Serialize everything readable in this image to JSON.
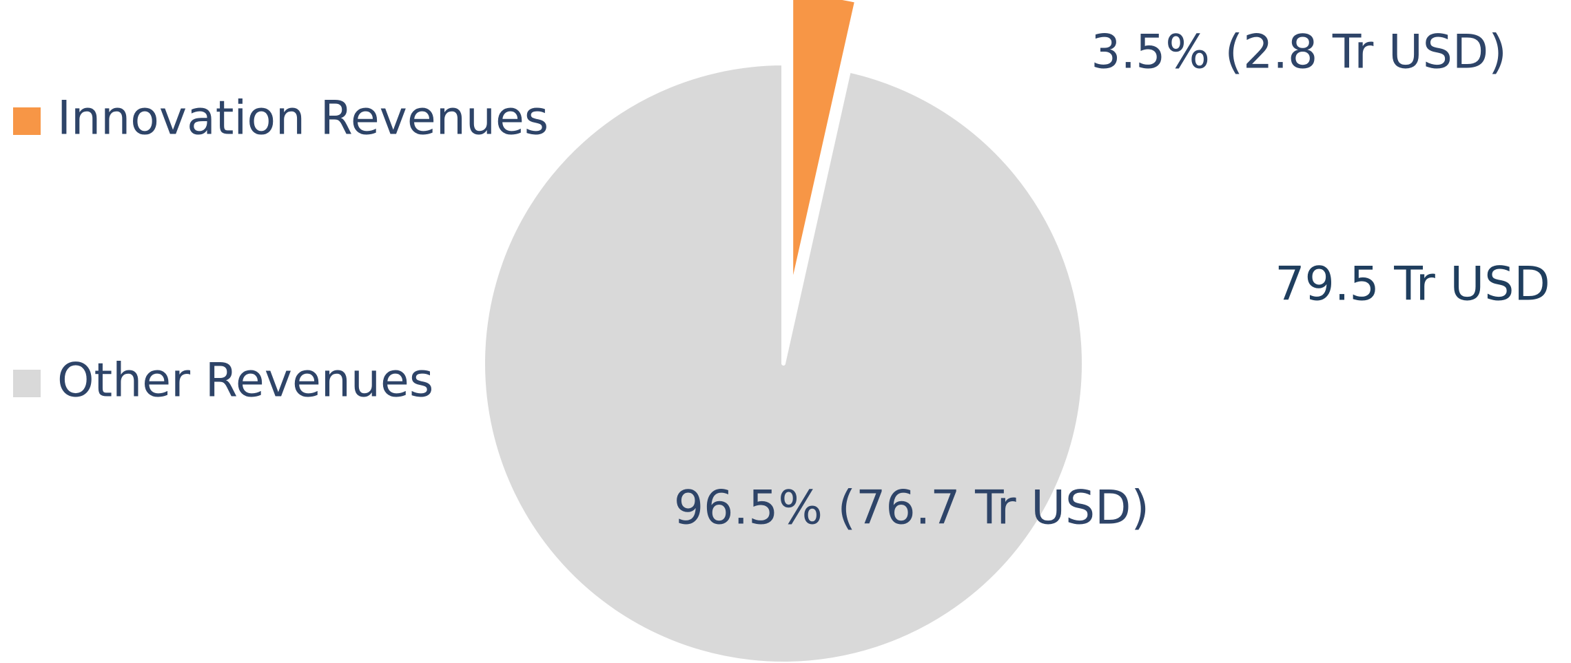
{
  "chart_data": {
    "type": "pie",
    "categories": [
      "Innovation Revenues",
      "Other Revenues"
    ],
    "values": [
      3.5,
      96.5
    ],
    "value_labels": [
      "3.5% (2.8 Tr USD)",
      "96.5% (76.7 Tr USD)"
    ],
    "colors": [
      "#f79646",
      "#d9d9d9"
    ],
    "annotation": "79.5 Tr USD"
  }
}
